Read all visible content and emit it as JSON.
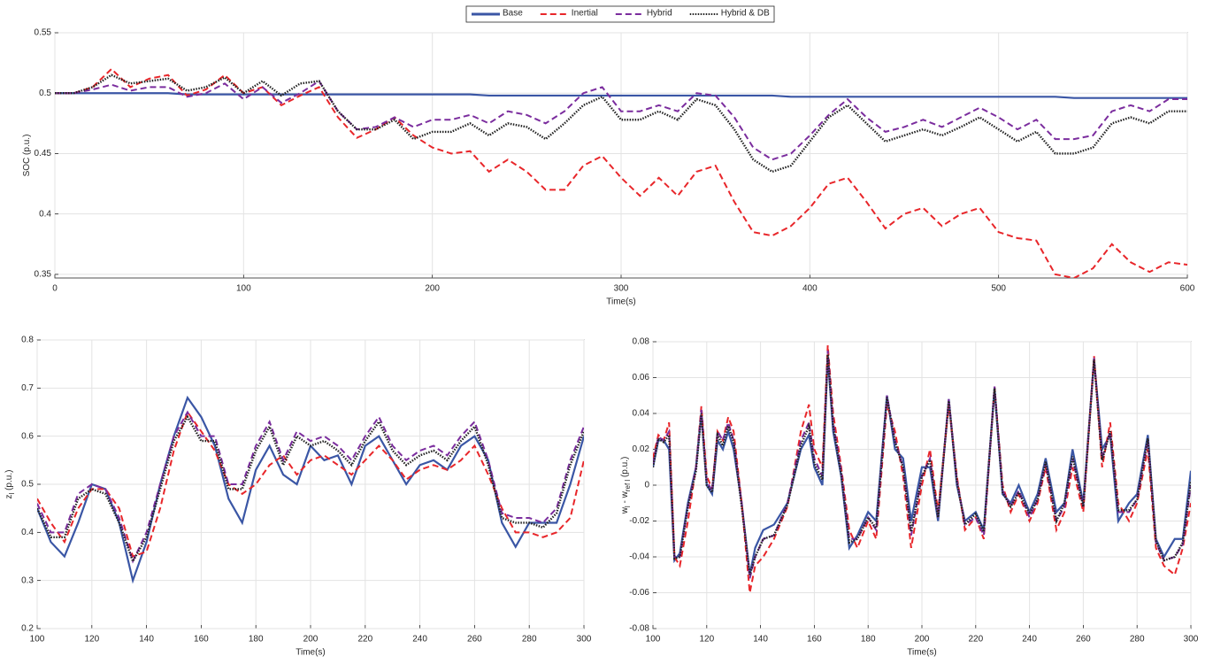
{
  "chart_data": [
    {
      "type": "line",
      "xlabel": "Time(s)",
      "ylabel_parts": [
        {
          "text": "SOC (p.u.)"
        }
      ],
      "x": [
        0,
        10,
        20,
        30,
        40,
        50,
        60,
        70,
        80,
        90,
        100,
        110,
        120,
        130,
        140,
        150,
        160,
        170,
        180,
        190,
        200,
        210,
        220,
        230,
        240,
        250,
        260,
        270,
        280,
        290,
        300,
        310,
        320,
        330,
        340,
        350,
        360,
        370,
        380,
        390,
        400,
        410,
        420,
        430,
        440,
        450,
        460,
        470,
        480,
        490,
        500,
        510,
        520,
        530,
        540,
        550,
        560,
        570,
        580,
        590,
        600
      ],
      "xlim": [
        0,
        600
      ],
      "xticks": [
        0,
        100,
        200,
        300,
        400,
        500,
        600
      ],
      "ylim": [
        0.347,
        0.55
      ],
      "yticks": [
        0.35,
        0.4,
        0.45,
        0.5,
        0.55
      ],
      "grid": true,
      "series": [
        {
          "name": "Base",
          "color": "#3a56a5",
          "dash": "solid",
          "values": [
            0.5,
            0.5,
            0.5,
            0.5,
            0.5,
            0.5,
            0.5,
            0.499,
            0.499,
            0.499,
            0.499,
            0.499,
            0.499,
            0.499,
            0.499,
            0.499,
            0.499,
            0.499,
            0.499,
            0.499,
            0.499,
            0.499,
            0.499,
            0.498,
            0.498,
            0.498,
            0.498,
            0.498,
            0.498,
            0.498,
            0.498,
            0.498,
            0.498,
            0.498,
            0.498,
            0.498,
            0.498,
            0.498,
            0.498,
            0.497,
            0.497,
            0.497,
            0.497,
            0.497,
            0.497,
            0.497,
            0.497,
            0.497,
            0.497,
            0.497,
            0.497,
            0.497,
            0.497,
            0.497,
            0.496,
            0.496,
            0.496,
            0.496,
            0.496,
            0.496,
            0.496
          ]
        },
        {
          "name": "Inertial",
          "color": "#e8262a",
          "dash": "dashed",
          "values": [
            0.5,
            0.5,
            0.505,
            0.52,
            0.505,
            0.512,
            0.515,
            0.498,
            0.503,
            0.515,
            0.5,
            0.505,
            0.49,
            0.498,
            0.505,
            0.48,
            0.463,
            0.47,
            0.48,
            0.465,
            0.455,
            0.45,
            0.452,
            0.435,
            0.445,
            0.435,
            0.42,
            0.42,
            0.44,
            0.448,
            0.43,
            0.415,
            0.43,
            0.415,
            0.435,
            0.44,
            0.41,
            0.385,
            0.382,
            0.39,
            0.405,
            0.425,
            0.43,
            0.41,
            0.388,
            0.4,
            0.405,
            0.39,
            0.4,
            0.405,
            0.385,
            0.38,
            0.378,
            0.35,
            0.347,
            0.355,
            0.375,
            0.36,
            0.352,
            0.36,
            0.358
          ]
        },
        {
          "name": "Hybrid",
          "color": "#7b2d9e",
          "dash": "dashed",
          "values": [
            0.5,
            0.5,
            0.503,
            0.507,
            0.502,
            0.505,
            0.505,
            0.497,
            0.5,
            0.508,
            0.495,
            0.505,
            0.492,
            0.5,
            0.51,
            0.485,
            0.47,
            0.472,
            0.48,
            0.472,
            0.478,
            0.478,
            0.482,
            0.475,
            0.485,
            0.482,
            0.475,
            0.485,
            0.5,
            0.505,
            0.485,
            0.485,
            0.49,
            0.485,
            0.5,
            0.498,
            0.48,
            0.455,
            0.445,
            0.45,
            0.465,
            0.482,
            0.495,
            0.48,
            0.468,
            0.472,
            0.478,
            0.472,
            0.48,
            0.488,
            0.48,
            0.47,
            0.478,
            0.462,
            0.462,
            0.465,
            0.485,
            0.49,
            0.485,
            0.495,
            0.495
          ]
        },
        {
          "name": "Hybrid & DB",
          "color": "#222222",
          "dash": "dotted",
          "values": [
            0.5,
            0.5,
            0.505,
            0.515,
            0.508,
            0.51,
            0.512,
            0.502,
            0.505,
            0.513,
            0.5,
            0.51,
            0.498,
            0.508,
            0.51,
            0.485,
            0.47,
            0.47,
            0.478,
            0.462,
            0.468,
            0.468,
            0.475,
            0.465,
            0.475,
            0.472,
            0.462,
            0.475,
            0.49,
            0.497,
            0.478,
            0.478,
            0.485,
            0.478,
            0.495,
            0.49,
            0.47,
            0.445,
            0.435,
            0.44,
            0.46,
            0.48,
            0.49,
            0.475,
            0.46,
            0.465,
            0.47,
            0.465,
            0.472,
            0.48,
            0.47,
            0.46,
            0.468,
            0.45,
            0.45,
            0.455,
            0.475,
            0.48,
            0.475,
            0.485,
            0.485
          ]
        }
      ]
    },
    {
      "type": "line",
      "xlabel": "Time(s)",
      "ylabel_parts": [
        {
          "text": "z"
        },
        {
          "text": "l",
          "sub": true
        },
        {
          "text": " (p.u.)"
        }
      ],
      "x": [
        100,
        105,
        110,
        115,
        120,
        125,
        130,
        135,
        140,
        145,
        150,
        155,
        160,
        165,
        170,
        175,
        180,
        185,
        190,
        195,
        200,
        205,
        210,
        215,
        220,
        225,
        230,
        235,
        240,
        245,
        250,
        255,
        260,
        265,
        270,
        275,
        280,
        285,
        290,
        295,
        300
      ],
      "xlim": [
        100,
        300
      ],
      "xticks": [
        100,
        120,
        140,
        160,
        180,
        200,
        220,
        240,
        260,
        280,
        300
      ],
      "ylim": [
        0.2,
        0.8
      ],
      "yticks": [
        0.2,
        0.3,
        0.4,
        0.5,
        0.6,
        0.7,
        0.8
      ],
      "grid": true,
      "series": [
        {
          "name": "Base",
          "color": "#3a56a5",
          "dash": "solid",
          "values": [
            0.45,
            0.38,
            0.35,
            0.42,
            0.5,
            0.49,
            0.42,
            0.3,
            0.38,
            0.5,
            0.6,
            0.68,
            0.64,
            0.58,
            0.47,
            0.42,
            0.53,
            0.58,
            0.52,
            0.5,
            0.58,
            0.55,
            0.56,
            0.5,
            0.58,
            0.6,
            0.55,
            0.5,
            0.54,
            0.55,
            0.53,
            0.58,
            0.6,
            0.55,
            0.42,
            0.37,
            0.42,
            0.42,
            0.42,
            0.5,
            0.6
          ]
        },
        {
          "name": "Inertial",
          "color": "#e8262a",
          "dash": "dashed",
          "values": [
            0.47,
            0.42,
            0.38,
            0.45,
            0.49,
            0.49,
            0.45,
            0.35,
            0.36,
            0.45,
            0.57,
            0.65,
            0.61,
            0.57,
            0.5,
            0.48,
            0.5,
            0.54,
            0.56,
            0.52,
            0.55,
            0.56,
            0.54,
            0.52,
            0.55,
            0.58,
            0.55,
            0.51,
            0.53,
            0.54,
            0.53,
            0.55,
            0.58,
            0.52,
            0.45,
            0.4,
            0.4,
            0.39,
            0.4,
            0.43,
            0.55
          ]
        },
        {
          "name": "Hybrid",
          "color": "#7b2d9e",
          "dash": "dashed",
          "values": [
            0.46,
            0.4,
            0.4,
            0.48,
            0.5,
            0.49,
            0.43,
            0.34,
            0.4,
            0.5,
            0.6,
            0.65,
            0.6,
            0.6,
            0.5,
            0.5,
            0.58,
            0.63,
            0.55,
            0.61,
            0.59,
            0.6,
            0.58,
            0.55,
            0.6,
            0.64,
            0.58,
            0.55,
            0.57,
            0.58,
            0.56,
            0.6,
            0.63,
            0.55,
            0.44,
            0.43,
            0.43,
            0.42,
            0.45,
            0.55,
            0.62
          ]
        },
        {
          "name": "Hybrid & DB",
          "color": "#222222",
          "dash": "dotted",
          "values": [
            0.45,
            0.39,
            0.39,
            0.47,
            0.49,
            0.48,
            0.42,
            0.34,
            0.39,
            0.49,
            0.59,
            0.64,
            0.59,
            0.59,
            0.49,
            0.49,
            0.57,
            0.62,
            0.54,
            0.6,
            0.58,
            0.59,
            0.57,
            0.54,
            0.59,
            0.63,
            0.57,
            0.54,
            0.56,
            0.57,
            0.55,
            0.59,
            0.62,
            0.54,
            0.43,
            0.42,
            0.42,
            0.41,
            0.44,
            0.54,
            0.61
          ]
        }
      ]
    },
    {
      "type": "line",
      "xlabel": "Time(s)",
      "ylabel_parts": [
        {
          "text": "w"
        },
        {
          "text": "l",
          "sub": true
        },
        {
          "text": " - w"
        },
        {
          "text": "ref l",
          "sub": true
        },
        {
          "text": " (p.u.)"
        }
      ],
      "x": [
        100,
        102,
        104,
        106,
        108,
        110,
        113,
        116,
        118,
        120,
        122,
        124,
        126,
        128,
        130,
        133,
        136,
        138,
        141,
        145,
        150,
        155,
        158,
        160,
        163,
        165,
        167,
        170,
        173,
        176,
        180,
        183,
        187,
        190,
        193,
        196,
        200,
        203,
        206,
        210,
        213,
        216,
        220,
        223,
        227,
        230,
        233,
        236,
        240,
        243,
        246,
        250,
        253,
        256,
        260,
        264,
        267,
        270,
        273,
        277,
        280,
        284,
        287,
        290,
        294,
        297,
        300
      ],
      "xlim": [
        100,
        300
      ],
      "xticks": [
        100,
        120,
        140,
        160,
        180,
        200,
        220,
        240,
        260,
        280,
        300
      ],
      "ylim": [
        -0.08,
        0.08
      ],
      "yticks": [
        -0.08,
        -0.06,
        -0.04,
        -0.02,
        0,
        0.02,
        0.04,
        0.06,
        0.08
      ],
      "grid": true,
      "series": [
        {
          "name": "Base",
          "color": "#3a56a5",
          "dash": "solid",
          "values": [
            0.01,
            0.025,
            0.025,
            0.02,
            -0.042,
            -0.038,
            -0.01,
            0.01,
            0.04,
            0.0,
            -0.005,
            0.025,
            0.02,
            0.03,
            0.02,
            -0.01,
            -0.05,
            -0.035,
            -0.025,
            -0.022,
            -0.01,
            0.02,
            0.028,
            0.01,
            0.0,
            0.072,
            0.03,
            0.005,
            -0.035,
            -0.028,
            -0.015,
            -0.02,
            0.05,
            0.02,
            0.015,
            -0.02,
            0.01,
            0.01,
            -0.02,
            0.048,
            0.0,
            -0.02,
            -0.015,
            -0.025,
            0.054,
            -0.005,
            -0.01,
            0.0,
            -0.015,
            -0.005,
            0.015,
            -0.015,
            -0.01,
            0.02,
            -0.01,
            0.07,
            0.02,
            0.028,
            -0.02,
            -0.01,
            -0.005,
            0.028,
            -0.03,
            -0.04,
            -0.03,
            -0.03,
            0.008
          ]
        },
        {
          "name": "Inertial",
          "color": "#e8262a",
          "dash": "dashed",
          "values": [
            0.015,
            0.028,
            0.025,
            0.035,
            -0.04,
            -0.045,
            -0.02,
            0.01,
            0.044,
            0.005,
            -0.002,
            0.03,
            0.025,
            0.038,
            0.03,
            -0.01,
            -0.06,
            -0.045,
            -0.04,
            -0.03,
            -0.012,
            0.03,
            0.045,
            0.02,
            0.01,
            0.078,
            0.04,
            0.01,
            -0.025,
            -0.035,
            -0.02,
            -0.03,
            0.045,
            0.03,
            0.005,
            -0.035,
            0.0,
            0.02,
            -0.015,
            0.045,
            0.005,
            -0.025,
            -0.018,
            -0.03,
            0.055,
            0.0,
            -0.015,
            -0.005,
            -0.02,
            -0.01,
            0.01,
            -0.025,
            -0.015,
            0.01,
            -0.015,
            0.072,
            0.01,
            0.035,
            -0.01,
            -0.02,
            -0.01,
            0.02,
            -0.035,
            -0.045,
            -0.05,
            -0.035,
            -0.01
          ]
        },
        {
          "name": "Hybrid",
          "color": "#7b2d9e",
          "dash": "dashed",
          "values": [
            0.012,
            0.027,
            0.025,
            0.03,
            -0.04,
            -0.04,
            -0.012,
            0.01,
            0.042,
            0.002,
            -0.003,
            0.03,
            0.025,
            0.035,
            0.025,
            -0.01,
            -0.052,
            -0.04,
            -0.03,
            -0.028,
            -0.01,
            0.025,
            0.035,
            0.015,
            0.005,
            0.075,
            0.035,
            0.008,
            -0.03,
            -0.03,
            -0.018,
            -0.025,
            0.05,
            0.025,
            0.01,
            -0.028,
            0.005,
            0.015,
            -0.018,
            0.048,
            0.003,
            -0.022,
            -0.018,
            -0.028,
            0.055,
            -0.003,
            -0.012,
            -0.003,
            -0.018,
            -0.008,
            0.012,
            -0.02,
            -0.012,
            0.015,
            -0.012,
            0.071,
            0.015,
            0.03,
            -0.015,
            -0.015,
            -0.008,
            0.025,
            -0.032,
            -0.042,
            -0.04,
            -0.033,
            0.0
          ]
        },
        {
          "name": "Hybrid & DB",
          "color": "#222222",
          "dash": "dotted",
          "values": [
            0.01,
            0.026,
            0.024,
            0.028,
            -0.041,
            -0.04,
            -0.012,
            0.008,
            0.04,
            0.0,
            -0.004,
            0.028,
            0.022,
            0.033,
            0.024,
            -0.012,
            -0.05,
            -0.04,
            -0.03,
            -0.028,
            -0.011,
            0.022,
            0.033,
            0.012,
            0.003,
            0.073,
            0.033,
            0.006,
            -0.032,
            -0.03,
            -0.018,
            -0.024,
            0.049,
            0.024,
            0.01,
            -0.026,
            0.005,
            0.014,
            -0.018,
            0.047,
            0.002,
            -0.022,
            -0.016,
            -0.026,
            0.054,
            -0.004,
            -0.012,
            -0.004,
            -0.016,
            -0.008,
            0.013,
            -0.02,
            -0.01,
            0.016,
            -0.012,
            0.07,
            0.014,
            0.03,
            -0.014,
            -0.014,
            -0.008,
            0.026,
            -0.031,
            -0.042,
            -0.04,
            -0.032,
            0.002
          ]
        }
      ]
    }
  ]
}
